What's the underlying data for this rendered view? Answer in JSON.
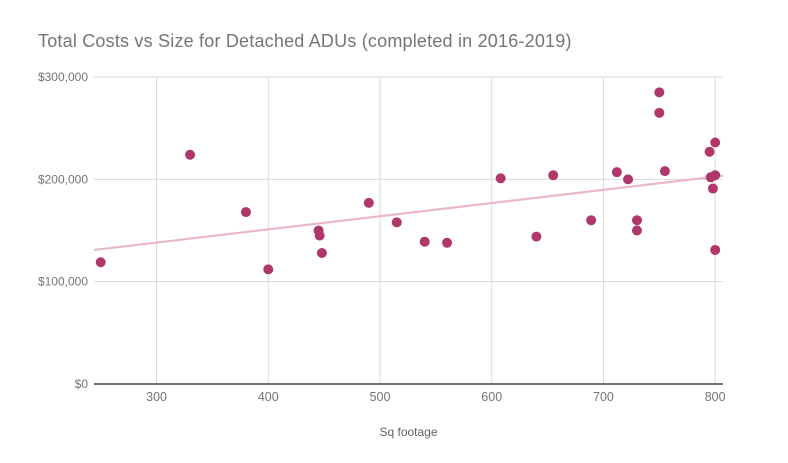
{
  "page": {
    "background": "#ffffff"
  },
  "style_colors": {
    "title": "#757575",
    "tick": "#757575",
    "axis_label": "#5f6368",
    "grid": "#dadada",
    "axis_line": "#424242"
  },
  "chart_data": {
    "type": "scatter",
    "title": "Total Costs vs Size for Detached ADUs (completed in 2016-2019)",
    "xlabel": "Sq footage",
    "ylabel": "",
    "legend": "none",
    "grid": true,
    "xlim": [
      244,
      807
    ],
    "ylim": [
      0,
      300000
    ],
    "x_ticks": [
      300,
      400,
      500,
      600,
      700,
      800
    ],
    "y_ticks": [
      0,
      100000,
      200000,
      300000
    ],
    "y_tick_labels": [
      "$0",
      "$100,000",
      "$200,000",
      "$300,000"
    ],
    "point_color": "#b03769",
    "point_radius": 5,
    "points": [
      [
        250,
        119000
      ],
      [
        330,
        224000
      ],
      [
        380,
        168000
      ],
      [
        400,
        112000
      ],
      [
        445,
        150000
      ],
      [
        446,
        145000
      ],
      [
        448,
        128000
      ],
      [
        490,
        177000
      ],
      [
        515,
        158000
      ],
      [
        540,
        139000
      ],
      [
        560,
        138000
      ],
      [
        608,
        201000
      ],
      [
        640,
        144000
      ],
      [
        655,
        204000
      ],
      [
        689,
        160000
      ],
      [
        712,
        207000
      ],
      [
        722,
        200000
      ],
      [
        730,
        160000
      ],
      [
        730,
        150000
      ],
      [
        750,
        285000
      ],
      [
        750,
        265000
      ],
      [
        755,
        208000
      ],
      [
        795,
        227000
      ],
      [
        800,
        236000
      ],
      [
        796,
        202000
      ],
      [
        800,
        204000
      ],
      [
        798,
        191000
      ],
      [
        800,
        131000
      ]
    ],
    "trendline": {
      "x1": 244,
      "y1": 131000,
      "x2": 807,
      "y2": 203500,
      "color": "#e8b7ce"
    }
  }
}
